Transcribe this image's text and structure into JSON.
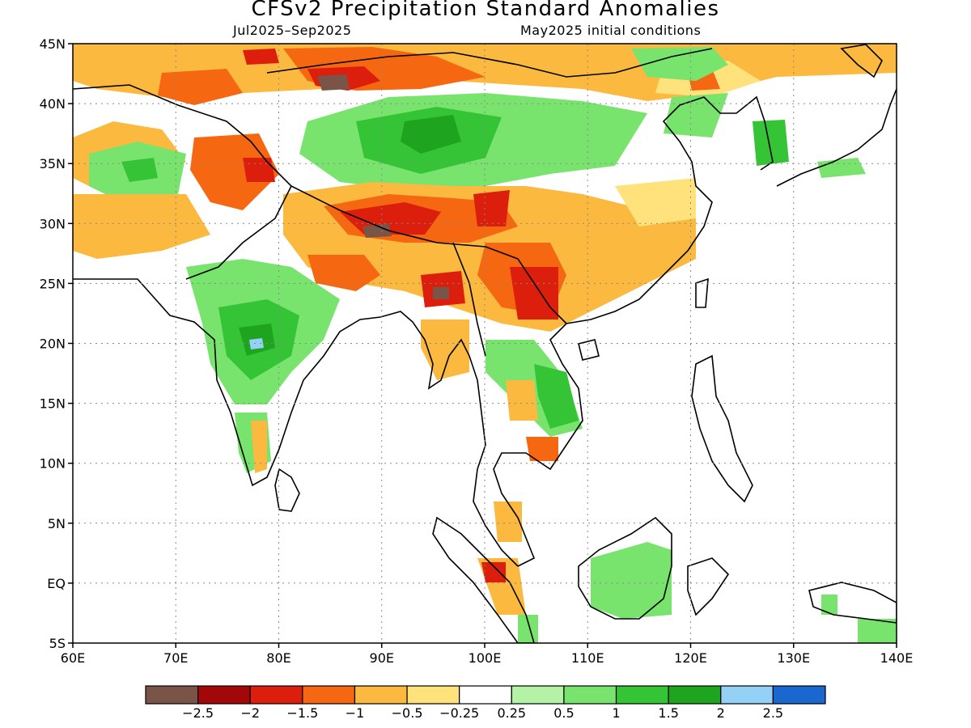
{
  "title": "CFSv2 Precipitation Standard Anomalies",
  "subtitle_left": "Jul2025–Sep2025",
  "subtitle_right": "May2025 initial conditions",
  "lat_labels": [
    "45N",
    "40N",
    "35N",
    "30N",
    "25N",
    "20N",
    "15N",
    "10N",
    "5N",
    "EQ",
    "5S"
  ],
  "lon_labels": [
    "60E",
    "70E",
    "80E",
    "90E",
    "100E",
    "110E",
    "120E",
    "130E",
    "140E"
  ],
  "legend": {
    "colors": [
      "#7a5446",
      "#a30808",
      "#dc1f0c",
      "#f56710",
      "#fbb93f",
      "#ffe27b",
      "#ffffff",
      "#b4f3a5",
      "#78e46e",
      "#35c435",
      "#1ea41f",
      "#95d0f7",
      "#1967cf"
    ],
    "labels": [
      "−2.5",
      "−2",
      "−1.5",
      "−1",
      "−0.5",
      "−0.25",
      "0.25",
      "0.5",
      "1",
      "1.5",
      "2",
      "2.5"
    ]
  }
}
